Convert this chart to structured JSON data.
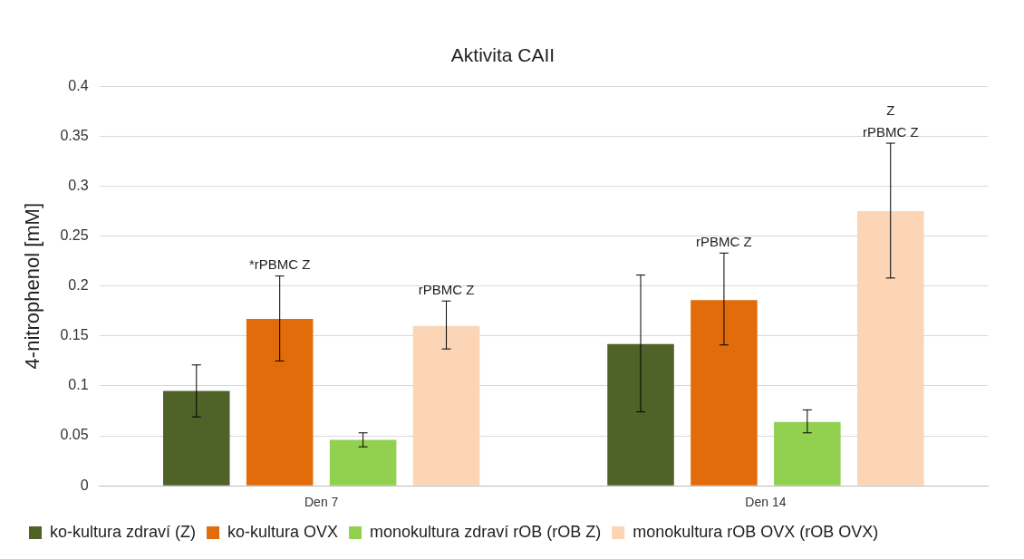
{
  "chart_data": {
    "type": "bar",
    "title": "Aktivita CAII",
    "ylabel": "4-nitrophenol [mM]",
    "categories": [
      "Den 7",
      "Den 14"
    ],
    "series": [
      {
        "name": "ko-kultura zdraví (Z)",
        "color": "#4f6228",
        "values": [
          0.095,
          0.142
        ],
        "errors": [
          [
            0.069,
            0.121
          ],
          [
            0.074,
            0.211
          ]
        ]
      },
      {
        "name": "ko-kultura OVX",
        "color": "#e26b0a",
        "values": [
          0.167,
          0.186
        ],
        "errors": [
          [
            0.125,
            0.21
          ],
          [
            0.141,
            0.233
          ]
        ]
      },
      {
        "name": "monokultura zdraví rOB (rOB Z)",
        "color": "#92d050",
        "values": [
          0.046,
          0.064
        ],
        "errors": [
          [
            0.039,
            0.053
          ],
          [
            0.053,
            0.076
          ]
        ]
      },
      {
        "name": "monokultura rOB OVX (rOB OVX)",
        "color": "#fbd5b5",
        "values": [
          0.16,
          0.275
        ],
        "errors": [
          [
            0.137,
            0.185
          ],
          [
            0.208,
            0.343
          ]
        ]
      }
    ],
    "ylim": [
      0,
      0.4
    ],
    "yticks": [
      0,
      0.05,
      0.1,
      0.15,
      0.2,
      0.25,
      0.3,
      0.35,
      0.4
    ],
    "grid": "y",
    "legend": "bottom",
    "annotations": [
      "*rPBMC Z",
      "rPBMC Z",
      "rPBMC Z",
      "Z",
      "rPBMC Z"
    ]
  }
}
